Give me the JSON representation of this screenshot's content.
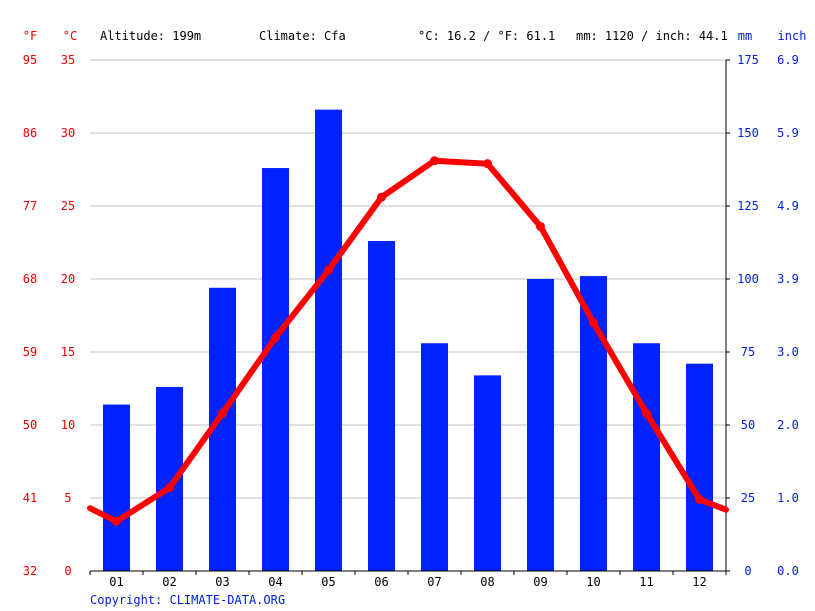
{
  "header": {
    "unit_f": "°F",
    "unit_c": "°C",
    "altitude": "Altitude: 199m",
    "climate": "Climate: Cfa",
    "avg_temp": "°C: 16.2 / °F: 61.1",
    "precip_total": "mm: 1120 / inch: 44.1",
    "unit_mm": "mm",
    "unit_inch": "inch"
  },
  "copyright": "Copyright: CLIMATE-DATA.ORG",
  "colors": {
    "bar": "#0022ff",
    "line": "#ff0000",
    "grid": "#c0c0c0",
    "axis_red": "#ee0000",
    "axis_blue": "#0022dd"
  },
  "chart_data": {
    "type": "bar",
    "categories": [
      "01",
      "02",
      "03",
      "04",
      "05",
      "06",
      "07",
      "08",
      "09",
      "10",
      "11",
      "12"
    ],
    "series": [
      {
        "type": "bar",
        "axis": "mm",
        "values": [
          57,
          63,
          97,
          138,
          158,
          113,
          78,
          67,
          100,
          101,
          78,
          71
        ]
      },
      {
        "type": "line",
        "axis": "celsius",
        "values": [
          3.4,
          5.7,
          10.8,
          16.0,
          20.6,
          25.6,
          28.1,
          27.9,
          23.6,
          17.0,
          10.8,
          4.9
        ]
      }
    ],
    "line_edges": {
      "left": 4.3,
      "right": 4.2
    },
    "celsius_axis": {
      "ticks": [
        "0",
        "5",
        "10",
        "15",
        "20",
        "25",
        "30",
        "35"
      ],
      "range": [
        0,
        35
      ]
    },
    "fahrenheit_axis": {
      "ticks": [
        "32",
        "41",
        "50",
        "59",
        "68",
        "77",
        "86",
        "95"
      ]
    },
    "mm_axis": {
      "ticks": [
        "0",
        "25",
        "50",
        "75",
        "100",
        "125",
        "150",
        "175"
      ],
      "range": [
        0,
        175
      ]
    },
    "inch_axis": {
      "ticks": [
        "0.0",
        "1.0",
        "2.0",
        "3.0",
        "3.9",
        "4.9",
        "5.9",
        "6.9"
      ]
    },
    "grid": true
  }
}
